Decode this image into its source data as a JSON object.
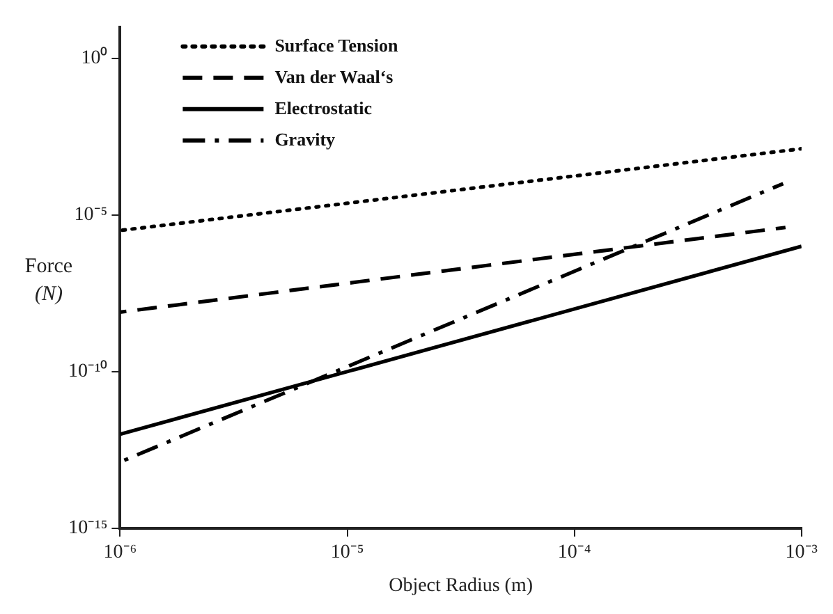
{
  "chart_data": {
    "type": "line",
    "xlabel": "Object Radius (m)",
    "ylabel": "Force (N)",
    "log": "xy",
    "xlim": [
      1e-06,
      0.001
    ],
    "ylim": [
      1e-15,
      10.0
    ],
    "xticks": [
      {
        "value": 1e-06,
        "label": "10⁻⁶"
      },
      {
        "value": 1e-05,
        "label": "10⁻⁵"
      },
      {
        "value": 0.0001,
        "label": "10⁻⁴"
      },
      {
        "value": 0.001,
        "label": "10⁻³"
      }
    ],
    "yticks": [
      {
        "value": 1e-15,
        "label": "10⁻¹⁵"
      },
      {
        "value": 1e-10,
        "label": "10⁻¹⁰"
      },
      {
        "value": 1e-05,
        "label": "10⁻⁵"
      },
      {
        "value": 1,
        "label": "10⁰"
      }
    ],
    "grid": false,
    "legend": "top left",
    "marker": "none",
    "series": [
      {
        "name": "Surface Tension",
        "color": "#000000",
        "line_style": "dotted",
        "x": [
          1e-06,
          0.001
        ],
        "values": [
          3.2e-06,
          0.0013
        ]
      },
      {
        "name": "Van der Waal‘s",
        "color": "#000000",
        "line_style": "dashed",
        "x": [
          1e-06,
          0.00085
        ],
        "values": [
          7.9e-09,
          4e-06
        ]
      },
      {
        "name": "Electrostatic",
        "color": "#000000",
        "line_style": "solid",
        "x": [
          1e-06,
          0.001
        ],
        "values": [
          1e-12,
          1e-06
        ]
      },
      {
        "name": "Gravity",
        "color": "#000000",
        "line_style": "dashdot",
        "x": [
          1e-06,
          0.00083
        ],
        "values": [
          1.3e-13,
          0.0001
        ]
      }
    ]
  }
}
